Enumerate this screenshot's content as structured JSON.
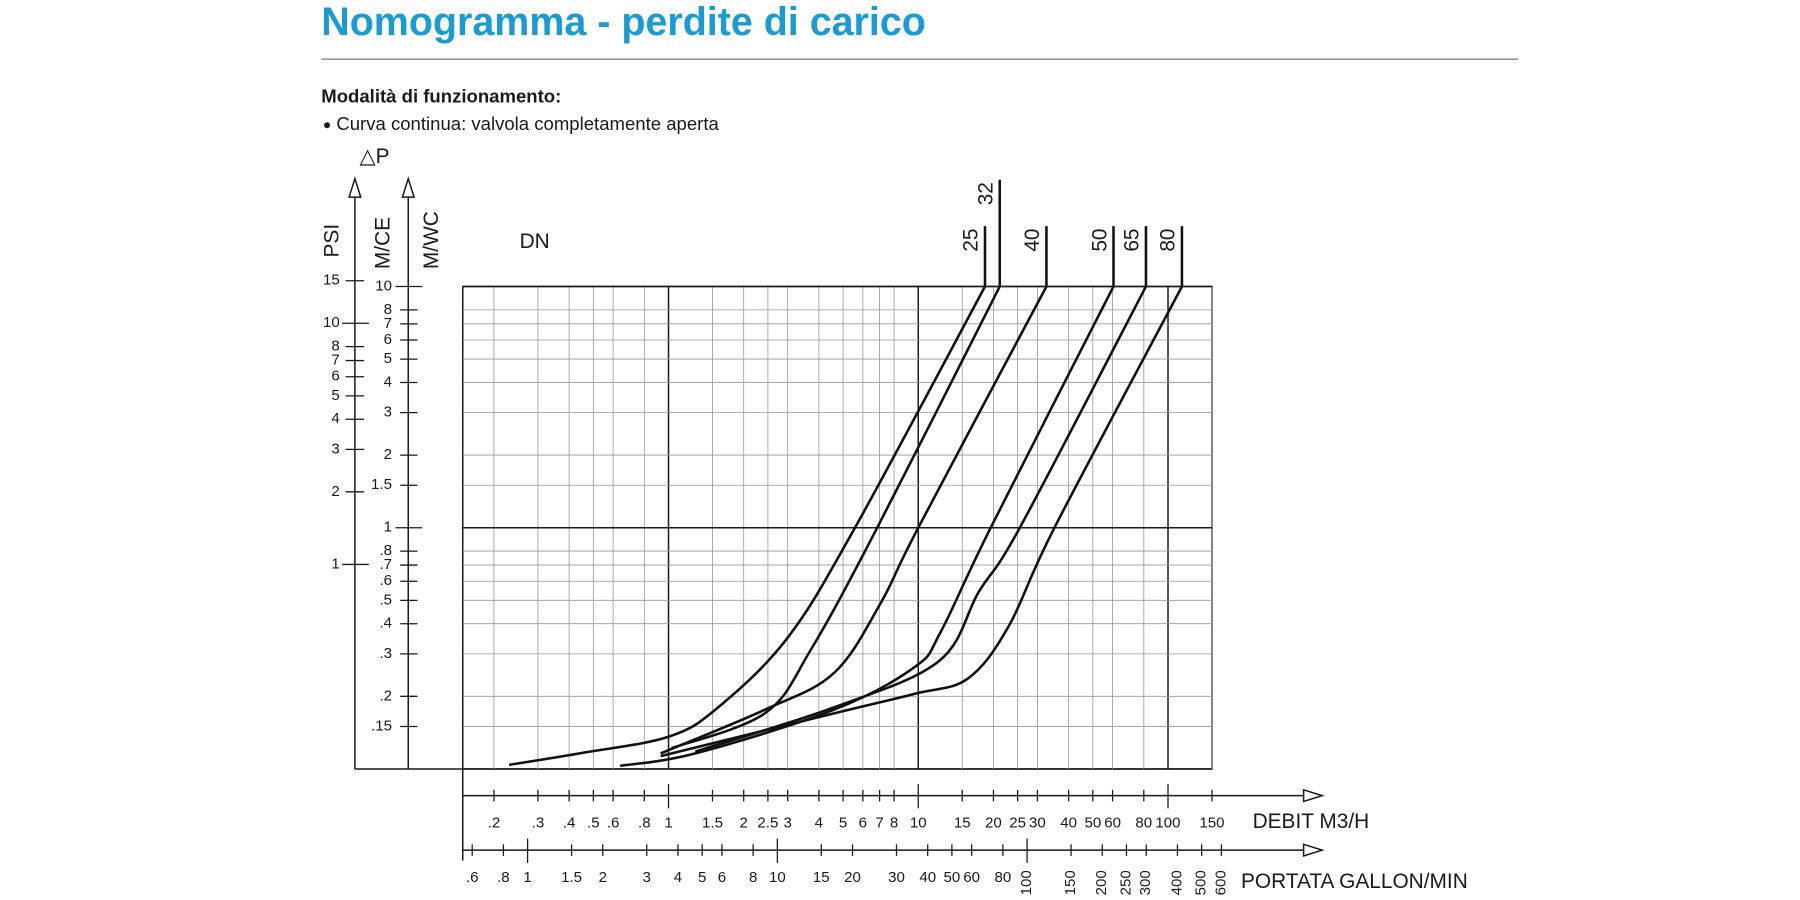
{
  "header": {
    "title": "Nomogramma - perdite di carico",
    "section": "Modalità di funzionamento:",
    "bullet": "Curva continua: valvola completamente aperta"
  },
  "chart_data": {
    "type": "line",
    "xscale": "log",
    "yscale": "log",
    "grid": true,
    "y_label": "△P",
    "y_axis_labels": [
      "M/CE",
      "M/WC"
    ],
    "y2_label": "PSI",
    "x_label": "DEBIT  M3/H",
    "x2_label": "PORTATA GALLON/MIN",
    "legend_title": "DN",
    "xlim": [
      0.15,
      150
    ],
    "ylim": [
      0.1,
      10
    ],
    "x2lim": [
      0.55,
      550
    ],
    "y2lim": [
      0.142,
      14.2
    ],
    "xticks": [
      {
        "value": 0.2,
        "label": ".2"
      },
      {
        "value": 0.3,
        "label": ".3"
      },
      {
        "value": 0.4,
        "label": ".4"
      },
      {
        "value": 0.5,
        "label": ".5"
      },
      {
        "value": 0.6,
        "label": ".6"
      },
      {
        "value": 0.8,
        "label": ".8"
      },
      1,
      1.5,
      2,
      2.5,
      3,
      4,
      5,
      6,
      7,
      8,
      10,
      15,
      20,
      25,
      30,
      40,
      50,
      60,
      80,
      100,
      150
    ],
    "x2ticks": [
      {
        "value": 0.6,
        "label": ".6"
      },
      {
        "value": 0.8,
        "label": ".8"
      },
      1,
      1.5,
      2,
      3,
      4,
      5,
      6,
      8,
      10,
      15,
      20,
      30,
      40,
      50,
      60,
      80,
      100,
      150,
      200,
      250,
      300,
      400,
      500,
      600
    ],
    "yticks": [
      10,
      8,
      7,
      6,
      5,
      4,
      3,
      2,
      1.5,
      1,
      {
        "value": 0.8,
        "label": ".8"
      },
      {
        "value": 0.7,
        "label": ".7"
      },
      {
        "value": 0.6,
        "label": ".6"
      },
      {
        "value": 0.5,
        "label": ".5"
      },
      {
        "value": 0.4,
        "label": ".4"
      },
      {
        "value": 0.3,
        "label": ".3"
      },
      {
        "value": 0.2,
        "label": ".2"
      },
      {
        "value": 0.15,
        "label": ".15"
      }
    ],
    "y2ticks": [
      15,
      10,
      8,
      7,
      6,
      5,
      4,
      3,
      2,
      1
    ],
    "series": [
      {
        "name": "25",
        "color": "#111111",
        "x": [
          0.23,
          0.44,
          1,
          1.58,
          3.0,
          5.58,
          18.5
        ],
        "values": [
          0.104,
          0.116,
          0.136,
          0.18,
          0.35,
          1,
          10
        ]
      },
      {
        "name": "32",
        "color": "#111111",
        "x": [
          1.03,
          2.43,
          3.72,
          6.85,
          21.2
        ],
        "values": [
          0.122,
          0.17,
          0.313,
          1,
          10
        ]
      },
      {
        "name": "40",
        "color": "#111111",
        "x": [
          0.93,
          2.43,
          4.6,
          7.07,
          10,
          32.6
        ],
        "values": [
          0.116,
          0.176,
          0.25,
          0.487,
          1,
          10
        ]
      },
      {
        "name": "50",
        "color": "#111111",
        "x": [
          0.64,
          1.28,
          4.6,
          9.7,
          12.3,
          19.5,
          60.5
        ],
        "values": [
          0.103,
          0.116,
          0.176,
          0.265,
          0.37,
          1,
          10
        ]
      },
      {
        "name": "65",
        "color": "#111111",
        "x": [
          1.28,
          4.6,
          12.1,
          17.5,
          25.5,
          81.6
        ],
        "values": [
          0.118,
          0.18,
          0.28,
          0.544,
          1,
          10
        ]
      },
      {
        "name": "80",
        "color": "#111111",
        "x": [
          0.93,
          4.6,
          9.7,
          15.8,
          23,
          35.1,
          113.7
        ],
        "values": [
          0.113,
          0.17,
          0.205,
          0.237,
          0.39,
          1,
          10
        ]
      }
    ]
  }
}
